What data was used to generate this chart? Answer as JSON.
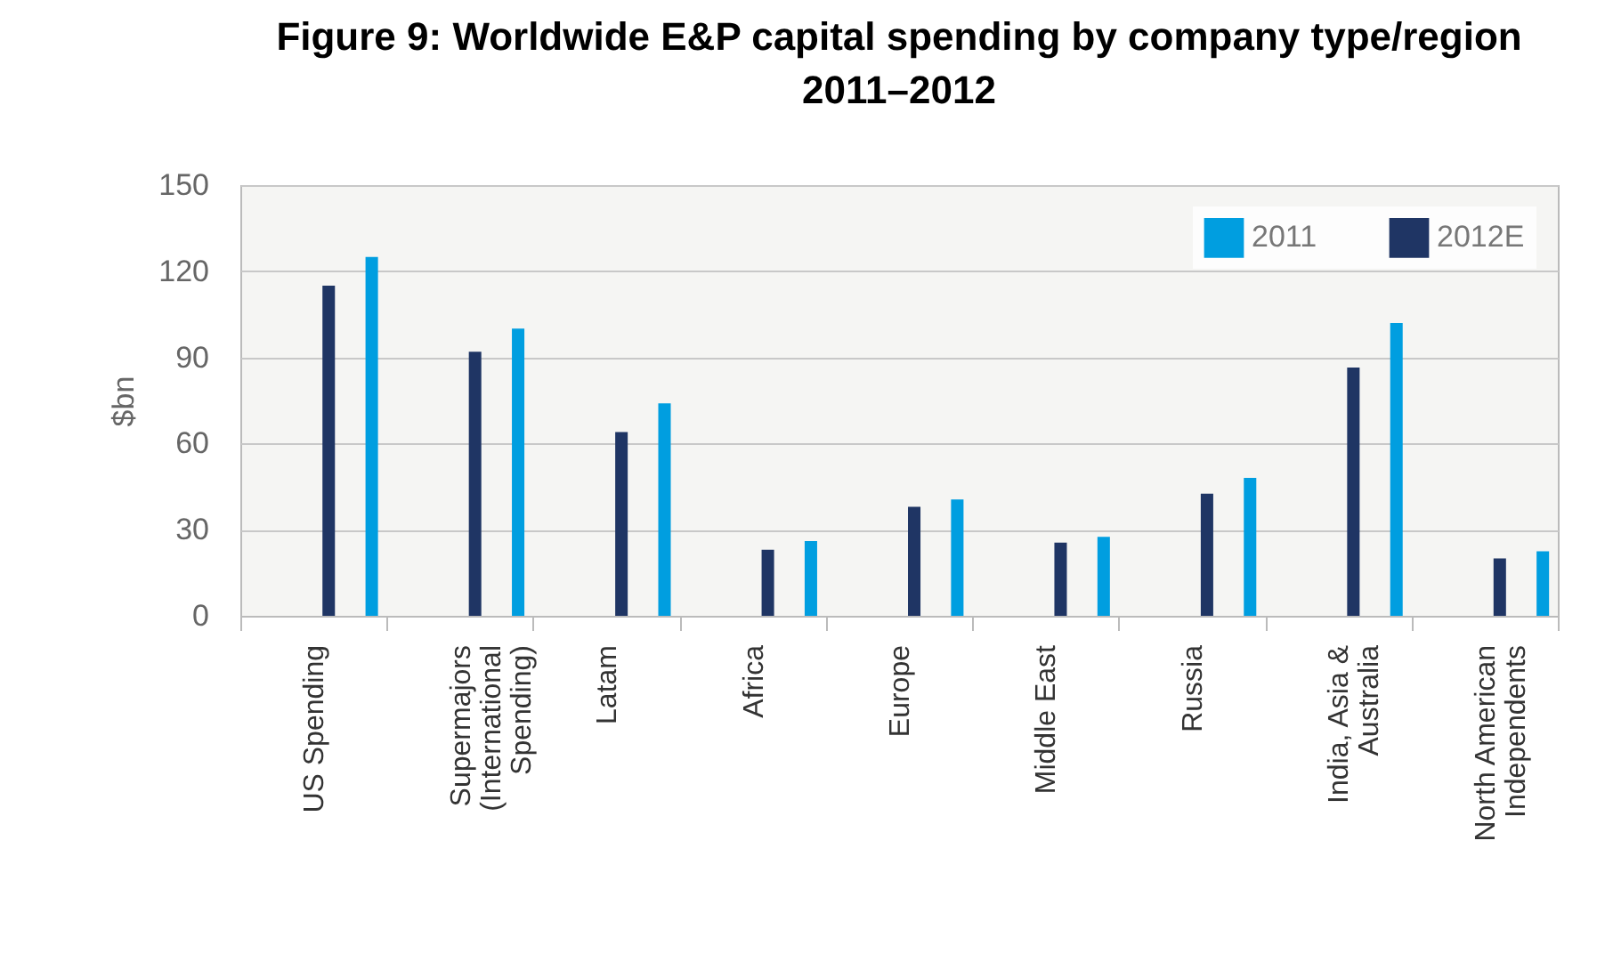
{
  "chart_data": {
    "type": "bar",
    "title": "Figure 9: Worldwide E&P capital spending by company type/region\n2011–2012",
    "ylabel": "$bn",
    "categories": [
      "US Spending",
      "Supermajors\n(International\nSpending)",
      "Latam",
      "Africa",
      "Europe",
      "Middle East",
      "Russia",
      "India, Asia &\nAustralia",
      "North American\nIndependents"
    ],
    "series": [
      {
        "name": "2012E",
        "color": "#1f3564",
        "values": [
          115,
          92,
          64,
          23,
          38,
          25.5,
          42.5,
          86.5,
          20
        ]
      },
      {
        "name": "2011",
        "color": "#009ee0",
        "values": [
          125,
          100,
          74,
          26,
          40.5,
          27.5,
          48,
          102,
          22.5
        ]
      }
    ],
    "ylim": [
      0,
      150
    ],
    "yticks": [
      0,
      30,
      60,
      90,
      120,
      150
    ],
    "grid": "y",
    "legend": "top right"
  }
}
